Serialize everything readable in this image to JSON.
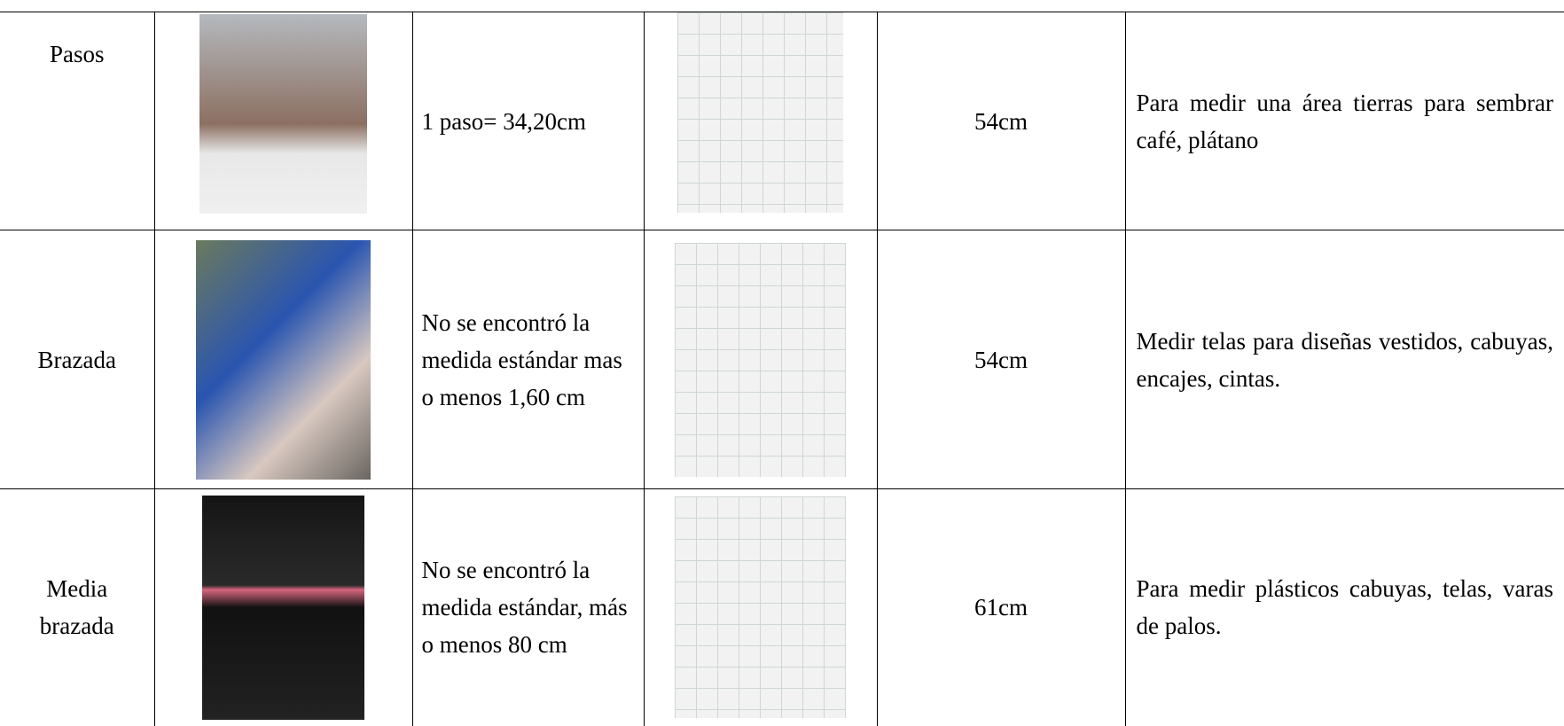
{
  "table": {
    "rows": [
      {
        "name": "Pasos",
        "measure": "1 paso= 34,20cm",
        "result": "54cm",
        "use": "Para medir una área tierras para sembrar café, plátano"
      },
      {
        "name": "Brazada",
        "measure": "No se encontró la medida estándar mas o menos 1,60 cm",
        "result": "54cm",
        "use": "Medir telas para diseñas vestidos, cabuyas, encajes, cintas."
      },
      {
        "name": "Media brazada",
        "measure": "No se encontró la medida estándar, más o menos 80 cm",
        "result": "61cm",
        "use": "Para medir plásticos cabuyas, telas, varas de palos."
      }
    ]
  }
}
